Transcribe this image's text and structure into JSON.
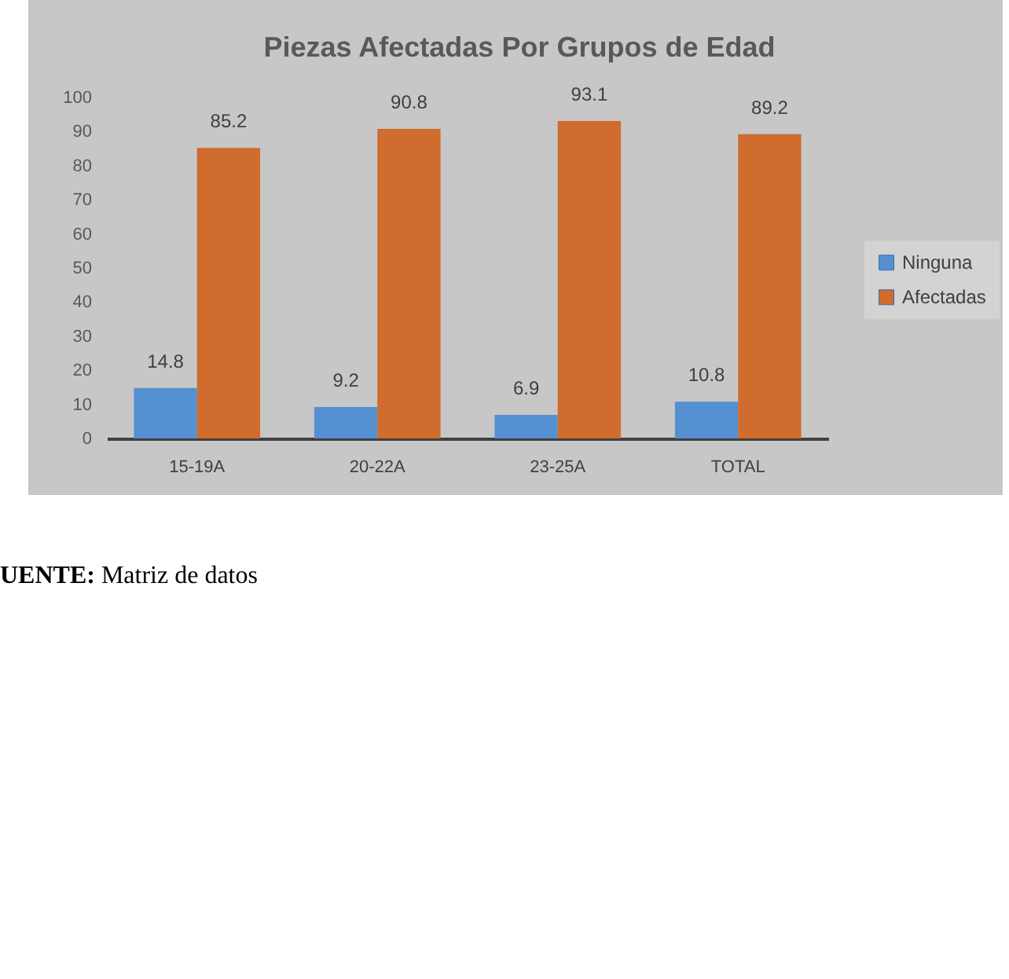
{
  "chart_data": {
    "type": "bar",
    "title": "Piezas Afectadas Por Grupos de Edad",
    "categories": [
      "15-19A",
      "20-22A",
      "23-25A",
      "TOTAL"
    ],
    "series": [
      {
        "name": "Ninguna",
        "color": "#5590d0",
        "values": [
          14.8,
          9.2,
          6.9,
          10.8
        ]
      },
      {
        "name": "Afectadas",
        "color": "#cf6c2e",
        "values": [
          85.2,
          90.8,
          93.1,
          89.2
        ]
      }
    ],
    "ylim": [
      0,
      100
    ],
    "yticks": [
      0,
      10,
      20,
      30,
      40,
      50,
      60,
      70,
      80,
      90,
      100
    ],
    "data_labels": true,
    "legend": "right",
    "annotations": [
      "UENTE: Matriz de datos"
    ]
  }
}
